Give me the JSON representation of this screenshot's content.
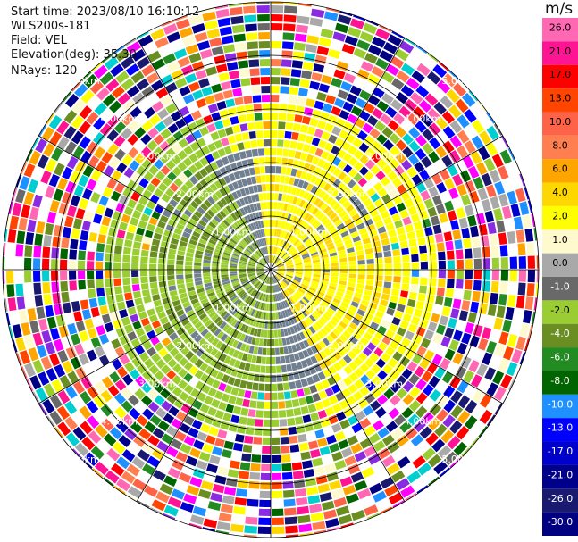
{
  "info": {
    "start_time": "Start time: 2023/08/10 16:10:12",
    "station": "WLS200s-181",
    "field": "Field: VEL",
    "elevation": "Elevation(deg): 35.30",
    "nrays": "NRays: 120"
  },
  "colorbar": {
    "unit": "m/s",
    "levels": [
      {
        "label": "26.0",
        "color": "#ff69b4"
      },
      {
        "label": "21.0",
        "color": "#ff1493"
      },
      {
        "label": "17.0",
        "color": "#ff0000"
      },
      {
        "label": "13.0",
        "color": "#ff4500"
      },
      {
        "label": "10.0",
        "color": "#ff6347"
      },
      {
        "label": "8.0",
        "color": "#ff7f50"
      },
      {
        "label": "6.0",
        "color": "#ffa500"
      },
      {
        "label": "4.0",
        "color": "#ffd700"
      },
      {
        "label": "2.0",
        "color": "#ffff00"
      },
      {
        "label": "1.0",
        "color": "#fffacd"
      },
      {
        "label": "0.0",
        "color": "#a9a9a9"
      },
      {
        "label": "-1.0",
        "color": "#696969"
      },
      {
        "label": "-2.0",
        "color": "#9acd32"
      },
      {
        "label": "-4.0",
        "color": "#6b8e23"
      },
      {
        "label": "-6.0",
        "color": "#228b22"
      },
      {
        "label": "-8.0",
        "color": "#006400"
      },
      {
        "label": "-10.0",
        "color": "#1e90ff"
      },
      {
        "label": "-13.0",
        "color": "#0000ff"
      },
      {
        "label": "-17.0",
        "color": "#0000cd"
      },
      {
        "label": "-21.0",
        "color": "#00008b"
      },
      {
        "label": "-26.0",
        "color": "#191970"
      },
      {
        "label": "-30.0",
        "color": "#000080"
      }
    ]
  },
  "chart_data": {
    "type": "heatmap",
    "projection": "polar (PPI)",
    "range_rings_km": [
      1.0,
      2.0,
      3.0,
      4.0,
      5.0
    ],
    "ring_labels": [
      "1.00km",
      "2.00km",
      "3.00km",
      "4.00km",
      "5.00km"
    ],
    "grid": true,
    "nrays": 120
  }
}
